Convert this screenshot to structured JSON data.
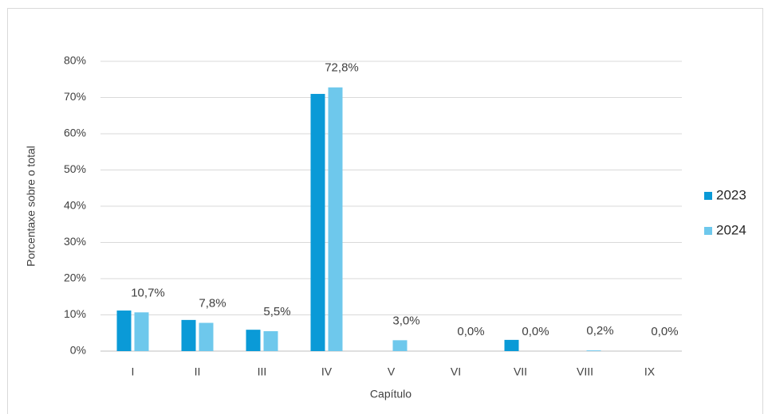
{
  "chart_data": {
    "type": "bar",
    "xlabel": "Capítulo",
    "ylabel": "Porcentaxe sobre o total",
    "categories": [
      "I",
      "II",
      "III",
      "IV",
      "V",
      "VI",
      "VII",
      "VIII",
      "IX"
    ],
    "series": [
      {
        "name": "2023",
        "color": "#0a9ad7",
        "values": [
          11.2,
          8.6,
          5.9,
          71.0,
          0,
          0,
          3.1,
          0,
          0
        ]
      },
      {
        "name": "2024",
        "color": "#6ec8ec",
        "values": [
          10.7,
          7.8,
          5.5,
          72.8,
          3.0,
          0.0,
          0.0,
          0.2,
          0.0
        ],
        "value_labels": [
          "10,7%",
          "7,8%",
          "5,5%",
          "72,8%",
          "3,0%",
          "0,0%",
          "0,0%",
          "0,2%",
          "0,0%"
        ]
      }
    ],
    "ylim": [
      0,
      80
    ],
    "yticks": [
      {
        "value": 0,
        "label": "0%"
      },
      {
        "value": 10,
        "label": "10%"
      },
      {
        "value": 20,
        "label": "20%"
      },
      {
        "value": 30,
        "label": "30%"
      },
      {
        "value": 40,
        "label": "40%"
      },
      {
        "value": 50,
        "label": "50%"
      },
      {
        "value": 60,
        "label": "60%"
      },
      {
        "value": 70,
        "label": "70%"
      },
      {
        "value": 80,
        "label": "80%"
      }
    ],
    "grid": true,
    "legend": "right"
  }
}
